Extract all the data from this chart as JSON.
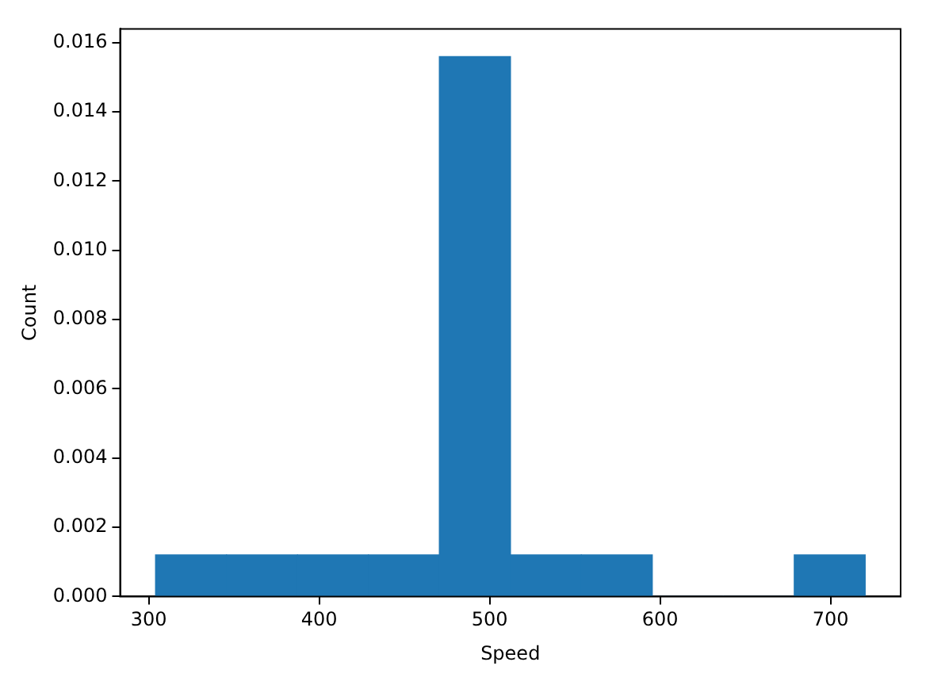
{
  "chart_data": {
    "type": "histogram",
    "xlabel": "Speed",
    "ylabel": "Count",
    "bins": [
      304,
      345.6,
      387.3,
      428.9,
      470.5,
      512.2,
      553.8,
      595.4,
      637,
      678.7,
      720.3
    ],
    "values": [
      0.0012,
      0.0012,
      0.0012,
      0.0012,
      0.0156,
      0.0012,
      0.0012,
      0,
      0,
      0.0012
    ],
    "color": "#1f77b4",
    "xlim": [
      283.2,
      741.1
    ],
    "xticks": [
      300,
      400,
      500,
      600,
      700
    ],
    "ylim": [
      0,
      0.0164
    ],
    "yticks": [
      {
        "value": 0,
        "label": "0.000"
      },
      {
        "value": 0.002,
        "label": "0.002"
      },
      {
        "value": 0.004,
        "label": "0.004"
      },
      {
        "value": 0.006,
        "label": "0.006"
      },
      {
        "value": 0.008,
        "label": "0.008"
      },
      {
        "value": 0.01,
        "label": "0.010"
      },
      {
        "value": 0.012,
        "label": "0.012"
      },
      {
        "value": 0.014,
        "label": "0.014"
      },
      {
        "value": 0.016,
        "label": "0.016"
      }
    ],
    "grid": false,
    "legend": false
  }
}
